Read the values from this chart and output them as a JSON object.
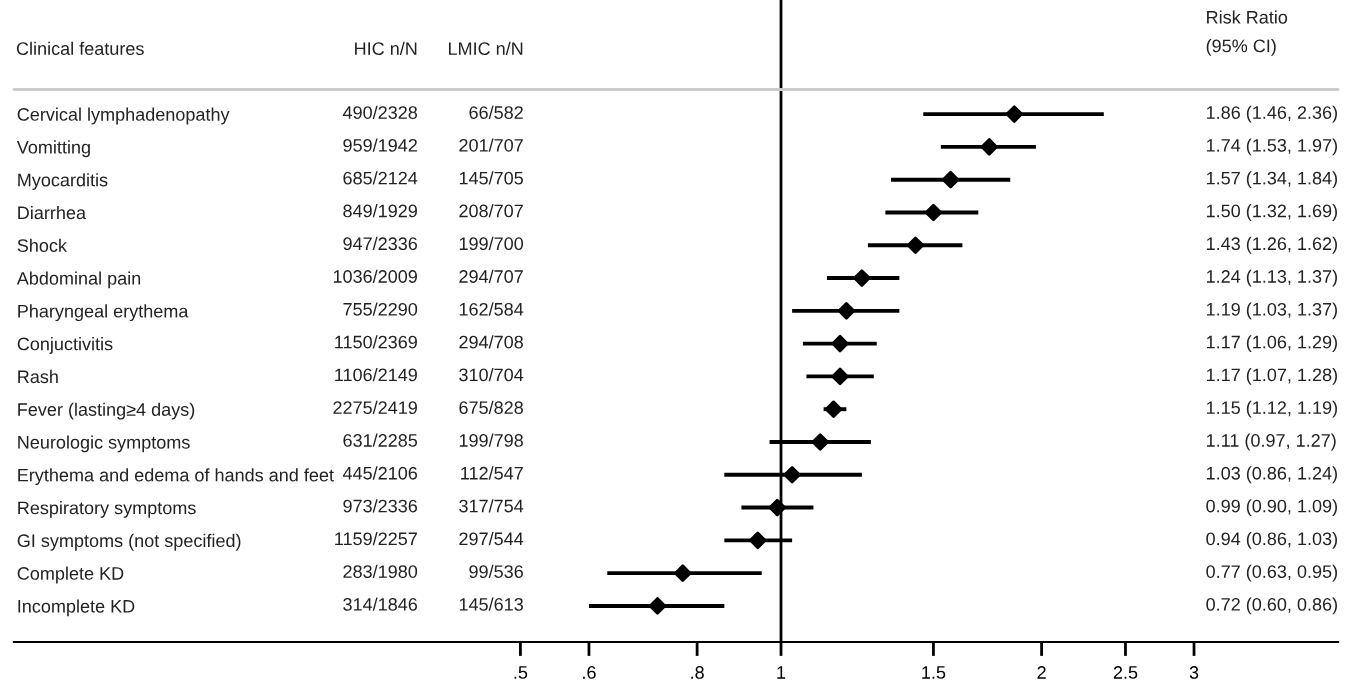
{
  "chart_data": {
    "type": "scatter",
    "orientation": "horizontal",
    "log": "x",
    "marker": "diamond",
    "grid": false,
    "ylabel": "Clinical features",
    "categories": [
      "Cervical lymphadenopathy",
      "Vomitting",
      "Myocarditis",
      "Diarrhea",
      "Shock",
      "Abdominal pain",
      "Pharyngeal erythema",
      "Conjuctivitis",
      "Rash",
      "Fever (lasting≥4 days)",
      "Neurologic symptoms",
      "Erythema and edema of hands and feet",
      "Respiratory symptoms",
      "GI symptoms (not specified)",
      "Complete KD",
      "Incomplete KD"
    ],
    "series": [
      {
        "color": "#000000",
        "values": [
          1.86,
          1.74,
          1.57,
          1.5,
          1.43,
          1.24,
          1.19,
          1.17,
          1.17,
          1.15,
          1.11,
          1.03,
          0.99,
          0.94,
          0.77,
          0.72
        ],
        "errors": [
          [
            1.46,
            2.36
          ],
          [
            1.53,
            1.97
          ],
          [
            1.34,
            1.84
          ],
          [
            1.32,
            1.69
          ],
          [
            1.26,
            1.62
          ],
          [
            1.13,
            1.37
          ],
          [
            1.03,
            1.37
          ],
          [
            1.06,
            1.29
          ],
          [
            1.07,
            1.28
          ],
          [
            1.12,
            1.19
          ],
          [
            0.97,
            1.27
          ],
          [
            0.86,
            1.24
          ],
          [
            0.9,
            1.09
          ],
          [
            0.86,
            1.03
          ],
          [
            0.63,
            0.95
          ],
          [
            0.6,
            0.86
          ]
        ]
      }
    ],
    "xlim": [
      0.13,
      4.4
    ],
    "xticks": [
      {
        "value": 0.5,
        "label": ".5"
      },
      {
        "value": 0.6,
        "label": ".6"
      },
      {
        "value": 0.8,
        "label": ".8"
      },
      1,
      1.5,
      2,
      2.5,
      3
    ],
    "ref_lines": [
      {
        "axis": "x",
        "value": 1,
        "color": "#000000"
      }
    ],
    "annotations": [
      "HIC n/N",
      "LMIC n/N",
      "Risk Ratio\n(95% CI)",
      "490/2328",
      "66/582",
      "1.86 (1.46, 2.36)",
      "959/1942",
      "201/707",
      "1.74 (1.53, 1.97)",
      "685/2124",
      "145/705",
      "1.57 (1.34, 1.84)",
      "849/1929",
      "208/707",
      "1.50 (1.32, 1.69)",
      "947/2336",
      "199/700",
      "1.43 (1.26, 1.62)",
      "1036/2009",
      "294/707",
      "1.24 (1.13, 1.37)",
      "755/2290",
      "162/584",
      "1.19 (1.03, 1.37)",
      "1150/2369",
      "294/708",
      "1.17 (1.06, 1.29)",
      "1106/2149",
      "310/704",
      "1.17 (1.07, 1.28)",
      "2275/2419",
      "675/828",
      "1.15 (1.12, 1.19)",
      "631/2285",
      "199/798",
      "1.11 (0.97, 1.27)",
      "445/2106",
      "112/547",
      "1.03 (0.86, 1.24)",
      "973/2336",
      "317/754",
      "0.99 (0.90, 1.09)",
      "1159/2257",
      "297/544",
      "0.94 (0.86, 1.03)",
      "283/1980",
      "99/536",
      "0.77 (0.63, 0.95)",
      "314/1846",
      "145/613",
      "0.72 (0.60, 0.86)"
    ]
  }
}
